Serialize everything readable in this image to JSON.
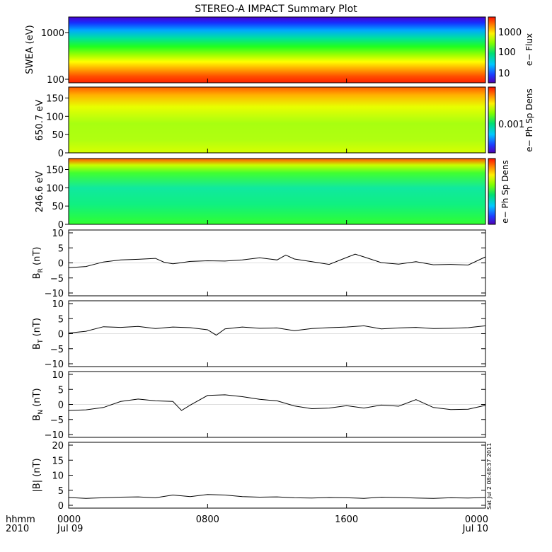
{
  "title": "STEREO-A IMPACT Summary Plot",
  "time_axis": {
    "label_line1": "hhmm",
    "label_line2": "2010",
    "ticks": [
      {
        "hours": 0,
        "line1": "0000",
        "line2": "Jul 09"
      },
      {
        "hours": 8,
        "line1": "0800",
        "line2": ""
      },
      {
        "hours": 16,
        "line1": "1600",
        "line2": ""
      },
      {
        "hours": 24,
        "line1": "0000",
        "line2": "Jul 10"
      }
    ],
    "range_hours": [
      0,
      24
    ]
  },
  "timestamp": "Sat Jul  2 08:48:37 2011",
  "chart_data": [
    {
      "type": "heatmap",
      "ylabel": "SWEA (eV)",
      "yscale": "log",
      "ylim": [
        100,
        2000
      ],
      "yticks": [
        "100",
        "1000"
      ],
      "colorbar_label": "e− Flux",
      "colorbar_ticks": [
        "10",
        "100",
        "1000"
      ],
      "description_values": "energy-flux color map: red (high) at low energy grading to blue (low) at high energy; nearly constant in time"
    },
    {
      "type": "heatmap",
      "ylabel": "650.7 eV",
      "ylim": [
        0,
        180
      ],
      "yticks": [
        "0",
        "50",
        "100",
        "150"
      ],
      "colorbar_label": "e− Ph Sp Dens",
      "colorbar_ticks": [
        "0.001"
      ],
      "description_values": "pitch-angle distribution: mostly yellow/green with orange-red bands near 150–180°"
    },
    {
      "type": "heatmap",
      "ylabel": "246.6 eV",
      "ylim": [
        0,
        180
      ],
      "yticks": [
        "0",
        "50",
        "100",
        "150"
      ],
      "colorbar_label": "e− Ph Sp Dens",
      "colorbar_ticks": [],
      "description_values": "pitch-angle distribution: green/cyan with red band near 180° and blue patches near 90° late in day"
    },
    {
      "type": "line",
      "ylabel_main": "B",
      "ylabel_sub": "R",
      "ylabel_unit": "(nT)",
      "ylim": [
        -10,
        10
      ],
      "yticks": [
        "−10",
        "−5",
        "0",
        "5",
        "10"
      ],
      "x_hours": [
        0,
        1,
        2,
        3,
        4,
        5,
        5.5,
        6,
        7,
        8,
        9,
        10,
        11,
        12,
        12.5,
        13,
        14,
        15,
        16,
        16.5,
        17,
        18,
        19,
        20,
        21,
        22,
        23,
        24
      ],
      "values": [
        -1.6,
        -1.2,
        0.3,
        1.0,
        1.2,
        1.5,
        0.2,
        -0.3,
        0.5,
        0.7,
        0.6,
        1.0,
        1.7,
        1.0,
        2.6,
        1.3,
        0.4,
        -0.5,
        1.8,
        2.9,
        2.0,
        0.1,
        -0.4,
        0.4,
        -0.6,
        -0.5,
        -0.7,
        2.0
      ]
    },
    {
      "type": "line",
      "ylabel_main": "B",
      "ylabel_sub": "T",
      "ylabel_unit": "(nT)",
      "ylim": [
        -10,
        10
      ],
      "yticks": [
        "−10",
        "−5",
        "0",
        "5",
        "10"
      ],
      "x_hours": [
        0,
        1,
        2,
        3,
        4,
        5,
        6,
        7,
        8,
        8.5,
        9,
        10,
        11,
        12,
        13,
        14,
        15,
        16,
        17,
        18,
        19,
        20,
        21,
        22,
        23,
        24
      ],
      "values": [
        0.2,
        0.8,
        2.3,
        2.1,
        2.4,
        1.7,
        2.2,
        2.0,
        1.3,
        -0.5,
        1.6,
        2.2,
        1.8,
        1.9,
        1.0,
        1.7,
        2.0,
        2.2,
        2.6,
        1.6,
        1.9,
        2.1,
        1.7,
        1.8,
        2.0,
        2.6
      ]
    },
    {
      "type": "line",
      "ylabel_main": "B",
      "ylabel_sub": "N",
      "ylabel_unit": "(nT)",
      "ylim": [
        -10,
        10
      ],
      "yticks": [
        "−10",
        "−5",
        "0",
        "5",
        "10"
      ],
      "x_hours": [
        0,
        1,
        2,
        3,
        4,
        5,
        6,
        6.5,
        7,
        8,
        9,
        10,
        11,
        12,
        13,
        14,
        15,
        16,
        17,
        18,
        19,
        20,
        21,
        22,
        23,
        24
      ],
      "values": [
        -2.0,
        -1.8,
        -1.0,
        1.0,
        1.8,
        1.2,
        1.0,
        -2.0,
        -0.2,
        3.0,
        3.2,
        2.6,
        1.7,
        1.2,
        -0.5,
        -1.4,
        -1.2,
        -0.4,
        -1.2,
        -0.2,
        -0.6,
        1.6,
        -1.0,
        -1.7,
        -1.6,
        -0.3
      ]
    },
    {
      "type": "line",
      "ylabel_main": "|B|",
      "ylabel_sub": "",
      "ylabel_unit": "(nT)",
      "ylim": [
        0,
        20
      ],
      "yticks": [
        "0",
        "5",
        "10",
        "15",
        "20"
      ],
      "x_hours": [
        0,
        1,
        2,
        3,
        4,
        5,
        6,
        7,
        8,
        9,
        10,
        11,
        12,
        13,
        14,
        15,
        16,
        17,
        18,
        19,
        20,
        21,
        22,
        23,
        24
      ],
      "values": [
        2.6,
        2.3,
        2.5,
        2.7,
        2.8,
        2.5,
        3.4,
        2.9,
        3.6,
        3.4,
        2.9,
        2.7,
        2.8,
        2.5,
        2.4,
        2.6,
        2.5,
        2.3,
        2.7,
        2.6,
        2.4,
        2.3,
        2.5,
        2.4,
        2.6
      ]
    }
  ]
}
